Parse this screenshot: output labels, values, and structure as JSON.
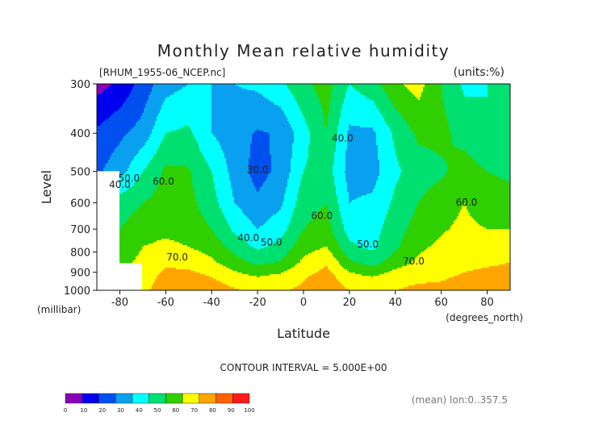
{
  "chart_data": {
    "type": "contour",
    "title": "Monthly Mean relative humidity",
    "dataset_label": "[RHUM_1955-06_NCEP.nc]",
    "units_label": "(units:%)",
    "xlabel": "Latitude",
    "x_units": "(degrees_north)",
    "ylabel": "Level",
    "y_units": "(millibar)",
    "xlim": [
      -90,
      90
    ],
    "ylim": [
      1000,
      300
    ],
    "x_ticks": [
      -80,
      -60,
      -40,
      -20,
      0,
      20,
      40,
      60,
      80
    ],
    "y_ticks": [
      300,
      400,
      500,
      600,
      700,
      800,
      900,
      1000
    ],
    "contour_interval_text": "CONTOUR INTERVAL = 5.000E+00",
    "footnote": "(mean) lon:0..357.5",
    "color_levels": [
      0,
      10,
      20,
      30,
      40,
      50,
      60,
      70,
      80,
      90,
      100
    ],
    "color_bins": [
      "#8a00b8",
      "#0000ee",
      "#0050f0",
      "#0aa0f0",
      "#00ffff",
      "#00e070",
      "#30d000",
      "#ffff00",
      "#ffa500",
      "#ff6000",
      "#ff1a1a"
    ],
    "latitudes": [
      -90,
      -80,
      -70,
      -60,
      -50,
      -40,
      -30,
      -20,
      -10,
      0,
      10,
      20,
      30,
      40,
      50,
      60,
      70,
      80,
      90
    ],
    "levels": [
      1000,
      925,
      850,
      775,
      700,
      600,
      500,
      400,
      300
    ],
    "values": [
      [
        null,
        null,
        76,
        88,
        89,
        86,
        81,
        78,
        79,
        82,
        86,
        80,
        78,
        80,
        82,
        82,
        84,
        88,
        88
      ],
      [
        null,
        null,
        74,
        84,
        84,
        80,
        74,
        70,
        73,
        79,
        84,
        74,
        70,
        76,
        78,
        79,
        81,
        82,
        82
      ],
      [
        null,
        68,
        72,
        78,
        76,
        72,
        64,
        58,
        61,
        72,
        79,
        62,
        56,
        65,
        72,
        75,
        78,
        79,
        80
      ],
      [
        null,
        64,
        70,
        72,
        70,
        66,
        56,
        48,
        53,
        66,
        70,
        52,
        48,
        58,
        68,
        72,
        75,
        74,
        74
      ],
      [
        null,
        60,
        66,
        68,
        66,
        60,
        48,
        40,
        46,
        60,
        64,
        46,
        46,
        56,
        64,
        69,
        72,
        70,
        70
      ],
      [
        null,
        55,
        60,
        64,
        63,
        54,
        40,
        32,
        38,
        56,
        60,
        40,
        42,
        52,
        60,
        66,
        70,
        65,
        64
      ],
      [
        28,
        36,
        50,
        62,
        61,
        50,
        36,
        26,
        33,
        50,
        55,
        36,
        36,
        48,
        55,
        58,
        65,
        60,
        58
      ],
      [
        22,
        28,
        34,
        50,
        52,
        40,
        34,
        29,
        31,
        46,
        60,
        38,
        38,
        52,
        62,
        63,
        56,
        50,
        52
      ],
      [
        6,
        12,
        24,
        36,
        40,
        40,
        40,
        42,
        48,
        58,
        64,
        50,
        56,
        68,
        74,
        60,
        48,
        50,
        52
      ]
    ],
    "contour_labels": [
      {
        "text": "30.0",
        "lat": -20,
        "level": 505
      },
      {
        "text": "40.0",
        "lat": -24,
        "level": 750
      },
      {
        "text": "50.0",
        "lat": -14,
        "level": 770
      },
      {
        "text": "40.0",
        "lat": -80,
        "level": 550
      },
      {
        "text": "50.0",
        "lat": -76,
        "level": 530
      },
      {
        "text": "60.0",
        "lat": -61,
        "level": 540
      },
      {
        "text": "70.0",
        "lat": -55,
        "level": 840
      },
      {
        "text": "40.0",
        "lat": 17,
        "level": 420
      },
      {
        "text": "60.0",
        "lat": 8,
        "level": 660
      },
      {
        "text": "50.0",
        "lat": 28,
        "level": 780
      },
      {
        "text": "70.0",
        "lat": 48,
        "level": 860
      },
      {
        "text": "60.0",
        "lat": 71,
        "level": 610
      }
    ]
  }
}
